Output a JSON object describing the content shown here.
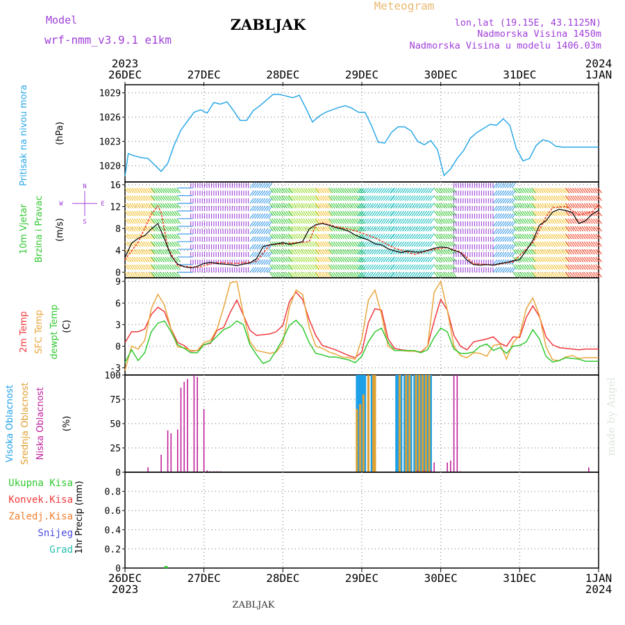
{
  "header": {
    "model_label": "Model",
    "model_name": "wrf-nmm_v3.9.1  e1km",
    "station": "ZABLJAK",
    "meteogram": "Meteogram",
    "coords": "lon,lat (19.15E, 43.1125N)",
    "elevation": "Nadmorska Visina 1450m",
    "model_elevation": "Nadmorska Visina u modelu 1406.03m",
    "footer_station": "ZABLJAK",
    "watermark": "made by Angel"
  },
  "time_axis": {
    "days": [
      "26DEC",
      "27DEC",
      "28DEC",
      "29DEC",
      "30DEC",
      "31DEC",
      "1JAN"
    ],
    "top_year_left": "2023",
    "top_year_right": "2024",
    "bottom_year_left": "2023",
    "bottom_year_right": "2024",
    "hours_total": 144
  },
  "colors": {
    "pressure": "#2aa8e8",
    "temp2m": "#f0383c",
    "sfc_temp": "#e8a63c",
    "dewpt": "#30c830",
    "cloud_high": "#1ea0e8",
    "cloud_mid": "#e0a030",
    "cloud_low": "#c0209c",
    "rain_total": "#30c830",
    "rain_conv": "#f03a3a",
    "freezing": "#f08030",
    "snow": "#4a4ae0",
    "hail": "#28c0b0",
    "title_purple": "#a040d8",
    "meteogram_orange": "#e8b870"
  },
  "chart_data": [
    {
      "type": "line",
      "name": "pressure",
      "label_lines": [
        "Pritisak na nivou mora"
      ],
      "unit": "(hPa)",
      "ylim": [
        1018,
        1030
      ],
      "yticks": [
        1020,
        1023,
        1026,
        1029
      ],
      "grid": true,
      "x": [
        0,
        1,
        3,
        5,
        7,
        9,
        11,
        13,
        15,
        17,
        19,
        21,
        23,
        25,
        27,
        29,
        31,
        33,
        35,
        37,
        39,
        41,
        43,
        45,
        47,
        49,
        51,
        53,
        55,
        57,
        59,
        61,
        63,
        65,
        67,
        69,
        71,
        73,
        75,
        77,
        79,
        81,
        83,
        85,
        87,
        89,
        91,
        93,
        95,
        97,
        99,
        101,
        103,
        105,
        107,
        109,
        111,
        113,
        115,
        117,
        119,
        121,
        123,
        125,
        127,
        129,
        131,
        133,
        135,
        137,
        139,
        141,
        143,
        144
      ],
      "y": [
        1018.7,
        1021.5,
        1021.2,
        1021.0,
        1020.9,
        1020.1,
        1019.3,
        1020.3,
        1022.6,
        1024.4,
        1025.5,
        1026.6,
        1026.9,
        1026.5,
        1027.8,
        1027.6,
        1027.9,
        1026.8,
        1025.6,
        1025.6,
        1026.8,
        1027.4,
        1028.1,
        1028.8,
        1028.8,
        1028.6,
        1028.4,
        1028.7,
        1027.1,
        1025.4,
        1026.1,
        1026.6,
        1026.9,
        1027.2,
        1027.4,
        1027.1,
        1026.6,
        1026.6,
        1024.9,
        1022.9,
        1022.8,
        1024.1,
        1024.8,
        1024.8,
        1024.3,
        1023.0,
        1022.6,
        1023.1,
        1022.0,
        1018.8,
        1019.6,
        1020.9,
        1021.9,
        1023.4,
        1024.1,
        1024.6,
        1025.1,
        1025.0,
        1025.8,
        1025.0,
        1022.1,
        1020.6,
        1020.9,
        1022.5,
        1023.2,
        1023.0,
        1022.4,
        1022.3,
        1022.3,
        1022.3,
        1022.3,
        1022.3,
        1022.3,
        1022.3
      ],
      "colors": [
        "#2aa8e8"
      ]
    },
    {
      "type": "line",
      "name": "wind",
      "label_lines": [
        "10m Vjetar",
        "Brzina i Pravac"
      ],
      "unit": "(m/s)",
      "ylim": [
        -1,
        16.5
      ],
      "yticks": [
        0,
        4,
        8,
        12,
        16
      ],
      "grid": true,
      "compass": {
        "n": "N",
        "e": "E",
        "s": "S",
        "w": "W"
      },
      "x": [
        0,
        2,
        4,
        6,
        8,
        10,
        12,
        14,
        16,
        18,
        20,
        22,
        24,
        26,
        28,
        30,
        32,
        34,
        36,
        38,
        40,
        42,
        44,
        46,
        48,
        50,
        52,
        54,
        56,
        58,
        60,
        62,
        64,
        66,
        68,
        70,
        72,
        74,
        76,
        78,
        80,
        82,
        84,
        86,
        88,
        90,
        92,
        94,
        96,
        98,
        100,
        102,
        104,
        106,
        108,
        110,
        112,
        114,
        116,
        118,
        120,
        122,
        124,
        126,
        128,
        130,
        132,
        134,
        136,
        138,
        140,
        142,
        144
      ],
      "y": [
        2.7,
        5.3,
        6.2,
        6.7,
        7.9,
        8.9,
        6.1,
        3.0,
        1.5,
        1.0,
        0.8,
        1.1,
        1.6,
        1.8,
        1.6,
        1.5,
        1.4,
        1.2,
        1.5,
        1.7,
        2.5,
        4.7,
        5.0,
        5.2,
        5.4,
        5.1,
        5.3,
        5.6,
        7.9,
        8.7,
        8.9,
        8.6,
        8.2,
        7.9,
        7.5,
        6.8,
        6.3,
        5.9,
        5.2,
        5.0,
        4.3,
        3.9,
        3.6,
        3.9,
        3.7,
        3.7,
        4.0,
        4.4,
        4.6,
        4.5,
        4.0,
        3.6,
        2.2,
        1.4,
        1.3,
        1.4,
        1.3,
        1.6,
        1.8,
        2.1,
        2.3,
        4.0,
        5.8,
        8.6,
        9.4,
        11.0,
        11.5,
        11.3,
        10.9,
        8.9,
        9.4,
        10.6,
        11.3
      ],
      "gust_x": [
        0,
        4,
        8,
        10,
        11,
        13,
        16,
        22,
        28,
        34,
        40,
        44,
        50,
        56,
        58,
        60,
        64,
        70,
        76,
        82,
        88,
        94,
        98,
        102,
        106,
        112,
        118,
        124,
        128,
        130,
        134,
        138,
        142,
        144
      ],
      "gust_y": [
        2.3,
        5.5,
        10.6,
        12.1,
        10.9,
        4.5,
        1.2,
        0.9,
        1.8,
        1.6,
        2.0,
        5.0,
        5.3,
        5.6,
        8.6,
        9.0,
        8.4,
        7.6,
        6.3,
        4.4,
        3.3,
        4.2,
        4.5,
        3.7,
        1.6,
        1.3,
        1.9,
        5.4,
        10.1,
        11.8,
        12.0,
        10.5,
        11.0,
        12.3
      ],
      "segments": [
        {
          "from": 0,
          "to": 8,
          "dir": "SW",
          "color": "#f0c030"
        },
        {
          "from": 8,
          "to": 16,
          "dir": "SW",
          "color": "#3ac83a"
        },
        {
          "from": 16,
          "to": 20,
          "dir": "W",
          "color": "#3a9ae8"
        },
        {
          "from": 20,
          "to": 38,
          "dir": "N",
          "color": "#9a40d8"
        },
        {
          "from": 38,
          "to": 44,
          "dir": "NW",
          "color": "#3a9ae8"
        },
        {
          "from": 44,
          "to": 50,
          "dir": "SW",
          "color": "#3ac83a"
        },
        {
          "from": 50,
          "to": 58,
          "dir": "SW",
          "color": "#9adc30"
        },
        {
          "from": 58,
          "to": 62,
          "dir": "SW",
          "color": "#f0c030"
        },
        {
          "from": 62,
          "to": 72,
          "dir": "SW",
          "color": "#3ac83a"
        },
        {
          "from": 72,
          "to": 82,
          "dir": "SE",
          "color": "#20c0c0"
        },
        {
          "from": 82,
          "to": 94,
          "dir": "SE",
          "color": "#20c0c0"
        },
        {
          "from": 94,
          "to": 100,
          "dir": "SW",
          "color": "#3ac83a"
        },
        {
          "from": 100,
          "to": 112,
          "dir": "N",
          "color": "#9a40d8"
        },
        {
          "from": 112,
          "to": 118,
          "dir": "NW",
          "color": "#3a9ae8"
        },
        {
          "from": 118,
          "to": 124,
          "dir": "SW",
          "color": "#3ac83a"
        },
        {
          "from": 124,
          "to": 134,
          "dir": "SW",
          "color": "#f0c030"
        },
        {
          "from": 134,
          "to": 144,
          "dir": "SW",
          "color": "#f04a30"
        }
      ],
      "colors": [
        "#000000",
        "#f04020"
      ]
    },
    {
      "type": "line",
      "name": "temperature",
      "label_lines": [
        "2m Temp",
        "SFC Temp",
        "dewpt Temp"
      ],
      "unit": "(C)",
      "ylim": [
        -4,
        9.5
      ],
      "yticks": [
        -3,
        0,
        3,
        6,
        9
      ],
      "grid": true,
      "x": [
        0,
        2,
        4,
        6,
        8,
        10,
        12,
        14,
        16,
        18,
        20,
        22,
        24,
        26,
        28,
        30,
        32,
        34,
        36,
        38,
        40,
        42,
        44,
        46,
        48,
        50,
        52,
        54,
        56,
        58,
        60,
        62,
        64,
        66,
        68,
        70,
        72,
        74,
        76,
        78,
        80,
        82,
        84,
        86,
        88,
        90,
        92,
        94,
        96,
        98,
        100,
        102,
        104,
        106,
        108,
        110,
        112,
        114,
        116,
        118,
        120,
        122,
        124,
        126,
        128,
        130,
        132,
        134,
        136,
        138,
        140,
        142,
        144
      ],
      "series": [
        {
          "name": "2m Temp",
          "y": [
            0.5,
            2.0,
            2.0,
            2.4,
            4.4,
            5.4,
            4.8,
            2.4,
            0.5,
            0.1,
            -0.7,
            -0.6,
            0.2,
            0.4,
            2.2,
            2.6,
            4.7,
            6.4,
            4.3,
            2.2,
            1.5,
            1.6,
            1.7,
            2.0,
            2.9,
            6.2,
            7.5,
            6.5,
            3.7,
            1.5,
            0.1,
            -0.2,
            -0.5,
            -0.9,
            -1.3,
            -1.6,
            -0.8,
            3.3,
            5.2,
            5.0,
            1.0,
            -0.3,
            -0.5,
            -0.6,
            -0.7,
            -0.8,
            0.0,
            3.5,
            6.5,
            5.0,
            1.5,
            0.0,
            -0.5,
            0.6,
            0.8,
            1.0,
            1.3,
            0.4,
            0.0,
            1.3,
            1.2,
            4.0,
            5.6,
            4.1,
            1.3,
            0.2,
            -0.2,
            -0.3,
            -0.4,
            -0.5,
            -0.4,
            -0.4,
            -0.4
          ]
        },
        {
          "name": "SFC Temp",
          "y": [
            -3.4,
            0.0,
            -0.4,
            0.8,
            5.2,
            7.2,
            5.7,
            2.4,
            -0.1,
            -0.2,
            -0.6,
            -0.6,
            0.5,
            0.8,
            2.4,
            5.4,
            8.8,
            9.0,
            4.4,
            0.6,
            -0.6,
            -0.8,
            -1.0,
            -0.8,
            0.4,
            5.4,
            7.8,
            7.2,
            2.6,
            0.0,
            -0.3,
            -0.8,
            -1.1,
            -1.5,
            -1.6,
            -1.8,
            1.0,
            6.4,
            7.8,
            4.4,
            0.0,
            -0.6,
            -0.6,
            -0.7,
            -0.7,
            -0.9,
            0.0,
            7.5,
            9.0,
            5.0,
            0.0,
            -1.3,
            -1.6,
            -0.9,
            -1.0,
            -1.4,
            0.1,
            0.3,
            -1.8,
            0.5,
            1.5,
            5.2,
            6.7,
            4.3,
            -0.1,
            -1.9,
            -2.0,
            -1.5,
            -1.3,
            -1.7,
            -1.6,
            -1.6,
            -1.6
          ]
        },
        {
          "name": "dewpt Temp",
          "y": [
            -2.3,
            -0.5,
            -2.0,
            -0.9,
            2.0,
            3.2,
            3.5,
            2.0,
            0.2,
            -0.3,
            -0.9,
            -0.9,
            0.2,
            0.5,
            1.4,
            2.3,
            2.7,
            3.5,
            3.0,
            0.2,
            -1.2,
            -2.4,
            -2.0,
            -0.6,
            1.0,
            2.9,
            3.6,
            2.6,
            0.5,
            -1.0,
            -1.2,
            -1.5,
            -1.5,
            -1.7,
            -1.9,
            -2.3,
            -1.4,
            0.6,
            2.0,
            2.5,
            0.5,
            -0.6,
            -0.6,
            -0.6,
            -0.6,
            -0.9,
            -0.5,
            1.2,
            2.5,
            2.0,
            -0.4,
            -1.0,
            -1.0,
            -0.8,
            0.0,
            0.3,
            -0.6,
            -0.2,
            -1.0,
            0.0,
            0.1,
            0.6,
            2.3,
            1.0,
            -1.4,
            -2.2,
            -2.0,
            -1.6,
            -1.7,
            -1.8,
            -2.1,
            -2.1,
            -2.1
          ]
        }
      ],
      "colors": [
        "#f0383c",
        "#e8a63c",
        "#30c830"
      ]
    },
    {
      "type": "bar",
      "name": "cloud_cover",
      "label_lines": [
        "Visoka Oblacnost",
        "Srednja Oblacnost",
        "Niska Oblacnost"
      ],
      "unit": "(%)",
      "ylim": [
        0,
        100
      ],
      "yticks": [
        0,
        25,
        50,
        75,
        100
      ],
      "grid": true,
      "series": [
        {
          "name": "Visoka Oblacnost",
          "x": [
            70.5,
            71,
            71.5,
            72,
            72.5,
            73,
            74,
            75,
            76,
            82.5,
            83,
            84,
            85,
            86,
            86.5,
            87,
            88,
            89,
            90,
            91,
            92,
            93
          ],
          "y": [
            100,
            100,
            100,
            100,
            100,
            100,
            100,
            100,
            100,
            100,
            100,
            100,
            100,
            100,
            100,
            100,
            100,
            100,
            100,
            100,
            100,
            100
          ]
        },
        {
          "name": "Srednja Oblacnost",
          "x": [
            70.5,
            71.5,
            72.5,
            74,
            75.5,
            76,
            83.5,
            85.5,
            86.5,
            88.5,
            89.5,
            90.5,
            91.5,
            92.5
          ],
          "y": [
            65,
            70,
            80,
            100,
            100,
            100,
            100,
            100,
            100,
            100,
            100,
            100,
            100,
            100
          ]
        },
        {
          "name": "Niska Oblacnost",
          "x": [
            7,
            11,
            13,
            14,
            16,
            17,
            18,
            19,
            20,
            21,
            22,
            23,
            24,
            25,
            26,
            27,
            28,
            29,
            89,
            91,
            93,
            94,
            98,
            99,
            100,
            101,
            102,
            141
          ],
          "y": [
            5,
            18,
            43,
            40,
            44,
            87,
            93,
            96,
            0,
            100,
            98,
            0,
            65,
            2,
            1,
            1,
            1,
            1,
            2,
            2,
            2,
            10,
            10,
            12,
            100,
            100,
            1,
            5
          ]
        }
      ],
      "colors": [
        "#1ea0e8",
        "#e0a030",
        "#c0209c"
      ]
    },
    {
      "type": "line",
      "name": "precipitation",
      "label_lines": [
        "1hr Precip (mm)"
      ],
      "unit": "",
      "legend": [
        "Ukupna Kisa",
        "Konvek.Kisa",
        "Zaledj.Kisa",
        "Snijeg",
        "Grad"
      ],
      "ylim": [
        0,
        1.0
      ],
      "yticks": [
        0,
        0.2,
        0.4,
        0.6,
        0.8
      ],
      "grid": true,
      "x": [
        12,
        13
      ],
      "y": [
        0.01,
        0.01
      ],
      "colors": [
        "#30c830",
        "#f03a3a",
        "#f08030",
        "#4a4ae0",
        "#28c0b0"
      ]
    }
  ]
}
